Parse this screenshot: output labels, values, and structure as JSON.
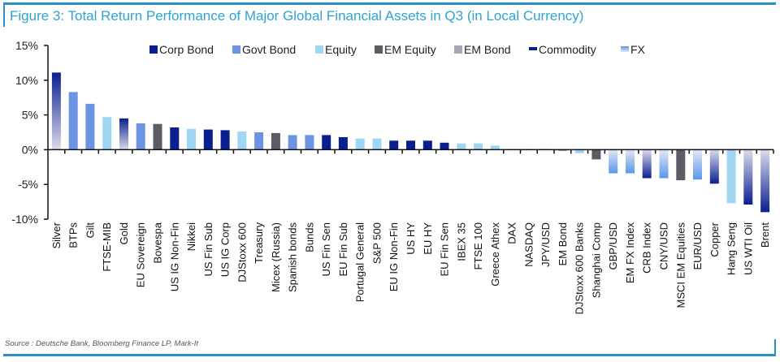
{
  "title": "Figure 3: Total Return Performance of Major Global Financial Assets in Q3 (in Local Currency)",
  "source": "Source : Deutsche Bank, Bloomberg Finance LP, Mark-It",
  "colors": {
    "frame": "#2a8fc9",
    "title": "#2fa3d3",
    "Corp Bond": "#0a1f8f",
    "Govt Bond": "#6f93e3",
    "Equity": "#9fd6f3",
    "EM Equity": "#5c5c66",
    "EM Bond": "#a7a7b3",
    "Commodity_dark": "#0a1f8f",
    "Commodity_light": "#dcdcec",
    "FX_dark": "#5a96e8",
    "FX_light": "#e3e8f4"
  },
  "chart_data": {
    "type": "bar",
    "title": "Figure 3: Total Return Performance of Major Global Financial Assets in Q3 (in Local Currency)",
    "xlabel": "",
    "ylabel": "",
    "ylim": [
      -10,
      15
    ],
    "yticks": [
      -10,
      -5,
      0,
      5,
      10,
      15
    ],
    "ytick_labels": [
      "-10%",
      "-5%",
      "0%",
      "5%",
      "10%",
      "15%"
    ],
    "grid": false,
    "legend_position": "top-center",
    "legend": [
      "Corp Bond",
      "Govt Bond",
      "Equity",
      "EM Equity",
      "EM Bond",
      "Commodity",
      "FX"
    ],
    "categories": [
      "Silver",
      "BTPs",
      "Gilt",
      "FTSE-MIB",
      "Gold",
      "EU Sovereign",
      "Bovespa",
      "US IG Non-Fin",
      "Nikkei",
      "US Fin Sub",
      "US IG Corp",
      "DJStoxx 600",
      "Treasury",
      "Micex (Russia)",
      "Spanish bonds",
      "Bunds",
      "US Fin Sen",
      "EU Fin Sub",
      "Portugal General",
      "S&P 500",
      "EU IG Non-Fin",
      "US HY",
      "EU HY",
      "EU Fin Sen",
      "IBEX 35",
      "FTSE 100",
      "Greece Athex",
      "DAX",
      "NASDAQ",
      "JPY/USD",
      "EM Bond",
      "DJStoxx 600 Banks",
      "Shanghai Comp",
      "GBP/USD",
      "EM FX Index",
      "CRB Index",
      "CNY/USD",
      "MSCI EM Equities",
      "EUR/USD",
      "Copper",
      "Hang Seng",
      "US WTI Oil",
      "Brent"
    ],
    "values": [
      11.1,
      8.3,
      6.6,
      4.7,
      4.5,
      3.8,
      3.7,
      3.2,
      3.0,
      2.9,
      2.8,
      2.6,
      2.5,
      2.4,
      2.1,
      2.1,
      2.1,
      1.8,
      1.6,
      1.6,
      1.3,
      1.3,
      1.3,
      1.0,
      0.9,
      0.9,
      0.6,
      0.1,
      0.1,
      0.1,
      -0.2,
      -0.5,
      -1.4,
      -3.4,
      -3.4,
      -4.1,
      -4.1,
      -4.4,
      -4.3,
      -4.9,
      -7.7,
      -7.9,
      -9.0
    ],
    "asset_class": [
      "Commodity",
      "Govt Bond",
      "Govt Bond",
      "Equity",
      "Commodity",
      "Govt Bond",
      "EM Equity",
      "Corp Bond",
      "Equity",
      "Corp Bond",
      "Corp Bond",
      "Equity",
      "Govt Bond",
      "EM Equity",
      "Govt Bond",
      "Govt Bond",
      "Corp Bond",
      "Corp Bond",
      "Equity",
      "Equity",
      "Corp Bond",
      "Corp Bond",
      "Corp Bond",
      "Corp Bond",
      "Equity",
      "Equity",
      "Equity",
      "Equity",
      "Equity",
      "FX",
      "EM Bond",
      "Equity",
      "EM Equity",
      "FX",
      "FX",
      "Commodity",
      "FX",
      "EM Equity",
      "FX",
      "Commodity",
      "Equity",
      "Commodity",
      "Commodity"
    ]
  }
}
